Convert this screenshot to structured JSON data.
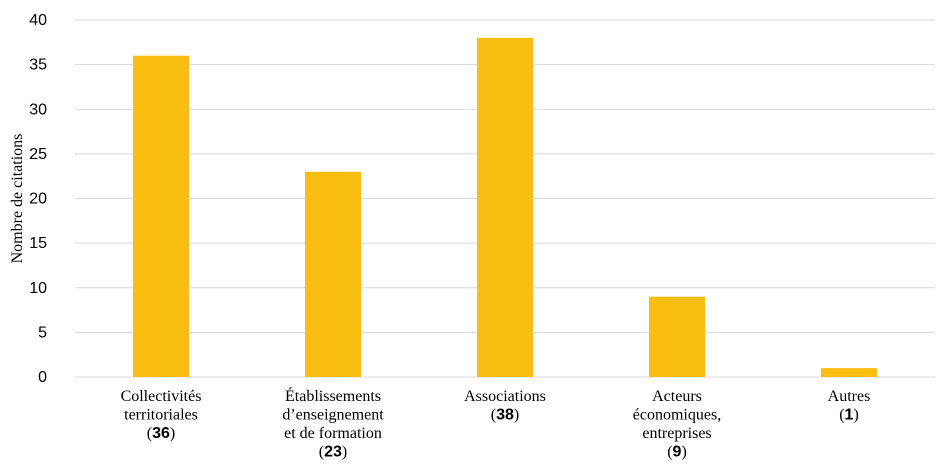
{
  "chart_data": {
    "type": "bar",
    "ylabel": "Nombre de citations",
    "xlabel": "",
    "ylim": [
      0,
      40
    ],
    "yticks": [
      0,
      5,
      10,
      15,
      20,
      25,
      30,
      35,
      40
    ],
    "grid": true,
    "bar_color": "#F9BE12",
    "grid_color": "#D9D9D9",
    "categories": [
      {
        "lines": [
          "Collectivités",
          "territoriales"
        ],
        "count_label": "36"
      },
      {
        "lines": [
          "Établissements",
          "d’enseignement",
          "et de formation"
        ],
        "count_label": "23"
      },
      {
        "lines": [
          "Associations"
        ],
        "count_label": "38"
      },
      {
        "lines": [
          "Acteurs",
          "économiques,",
          "entreprises"
        ],
        "count_label": "9"
      },
      {
        "lines": [
          "Autres"
        ],
        "count_label": "1"
      }
    ],
    "values": [
      36,
      23,
      38,
      9,
      1
    ]
  }
}
